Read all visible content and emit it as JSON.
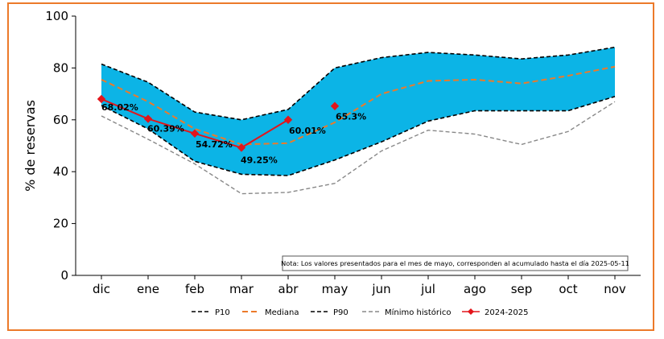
{
  "chart_data": {
    "type": "area",
    "categories": [
      "dic",
      "ene",
      "feb",
      "mar",
      "abr",
      "may",
      "jun",
      "jul",
      "ago",
      "sep",
      "oct",
      "nov"
    ],
    "ylabel": "% de  reservas",
    "ylim": [
      0,
      100
    ],
    "yticks": [
      0,
      20,
      40,
      60,
      80,
      100
    ],
    "grid": false,
    "legend_position": "bottom",
    "band_color": "#0cb4e6",
    "series": [
      {
        "name": "P10",
        "role": "p10",
        "color": "#000000",
        "style": "dashed",
        "values": [
          65.5,
          56.5,
          44,
          39,
          38.5,
          44.5,
          51.5,
          59.5,
          63.5,
          63.5,
          63.5,
          69
        ]
      },
      {
        "name": "Mediana",
        "role": "median",
        "color": "#ec7a2a",
        "style": "dashed",
        "values": [
          75.5,
          67,
          56.5,
          50.5,
          51,
          59,
          70,
          75,
          75.5,
          74,
          77,
          80.5
        ]
      },
      {
        "name": "P90",
        "role": "p90",
        "color": "#000000",
        "style": "dashed",
        "values": [
          81.5,
          74.5,
          63,
          60,
          64,
          80,
          84,
          86,
          85,
          83.5,
          85,
          88
        ]
      },
      {
        "name": "Mínimo histórico",
        "role": "min",
        "color": "#888888",
        "style": "dashed",
        "values": [
          61.5,
          52.5,
          43,
          31.5,
          32,
          35.5,
          48,
          56,
          54.5,
          50.5,
          55.5,
          67
        ]
      },
      {
        "name": "2024-2025",
        "role": "current",
        "color": "#e3151b",
        "style": "solid-diamond",
        "values": [
          68.02,
          60.39,
          54.72,
          49.25,
          60.01,
          65.3,
          null,
          null,
          null,
          null,
          null,
          null
        ],
        "labels": [
          "68.02%",
          "60.39%",
          "54.72%",
          "49.25%",
          "60.01%",
          "65.3%"
        ]
      }
    ],
    "annotation": "Nota: Los valores presentados para el mes de mayo, corresponden al acumulado hasta el día 2025-05-11"
  }
}
